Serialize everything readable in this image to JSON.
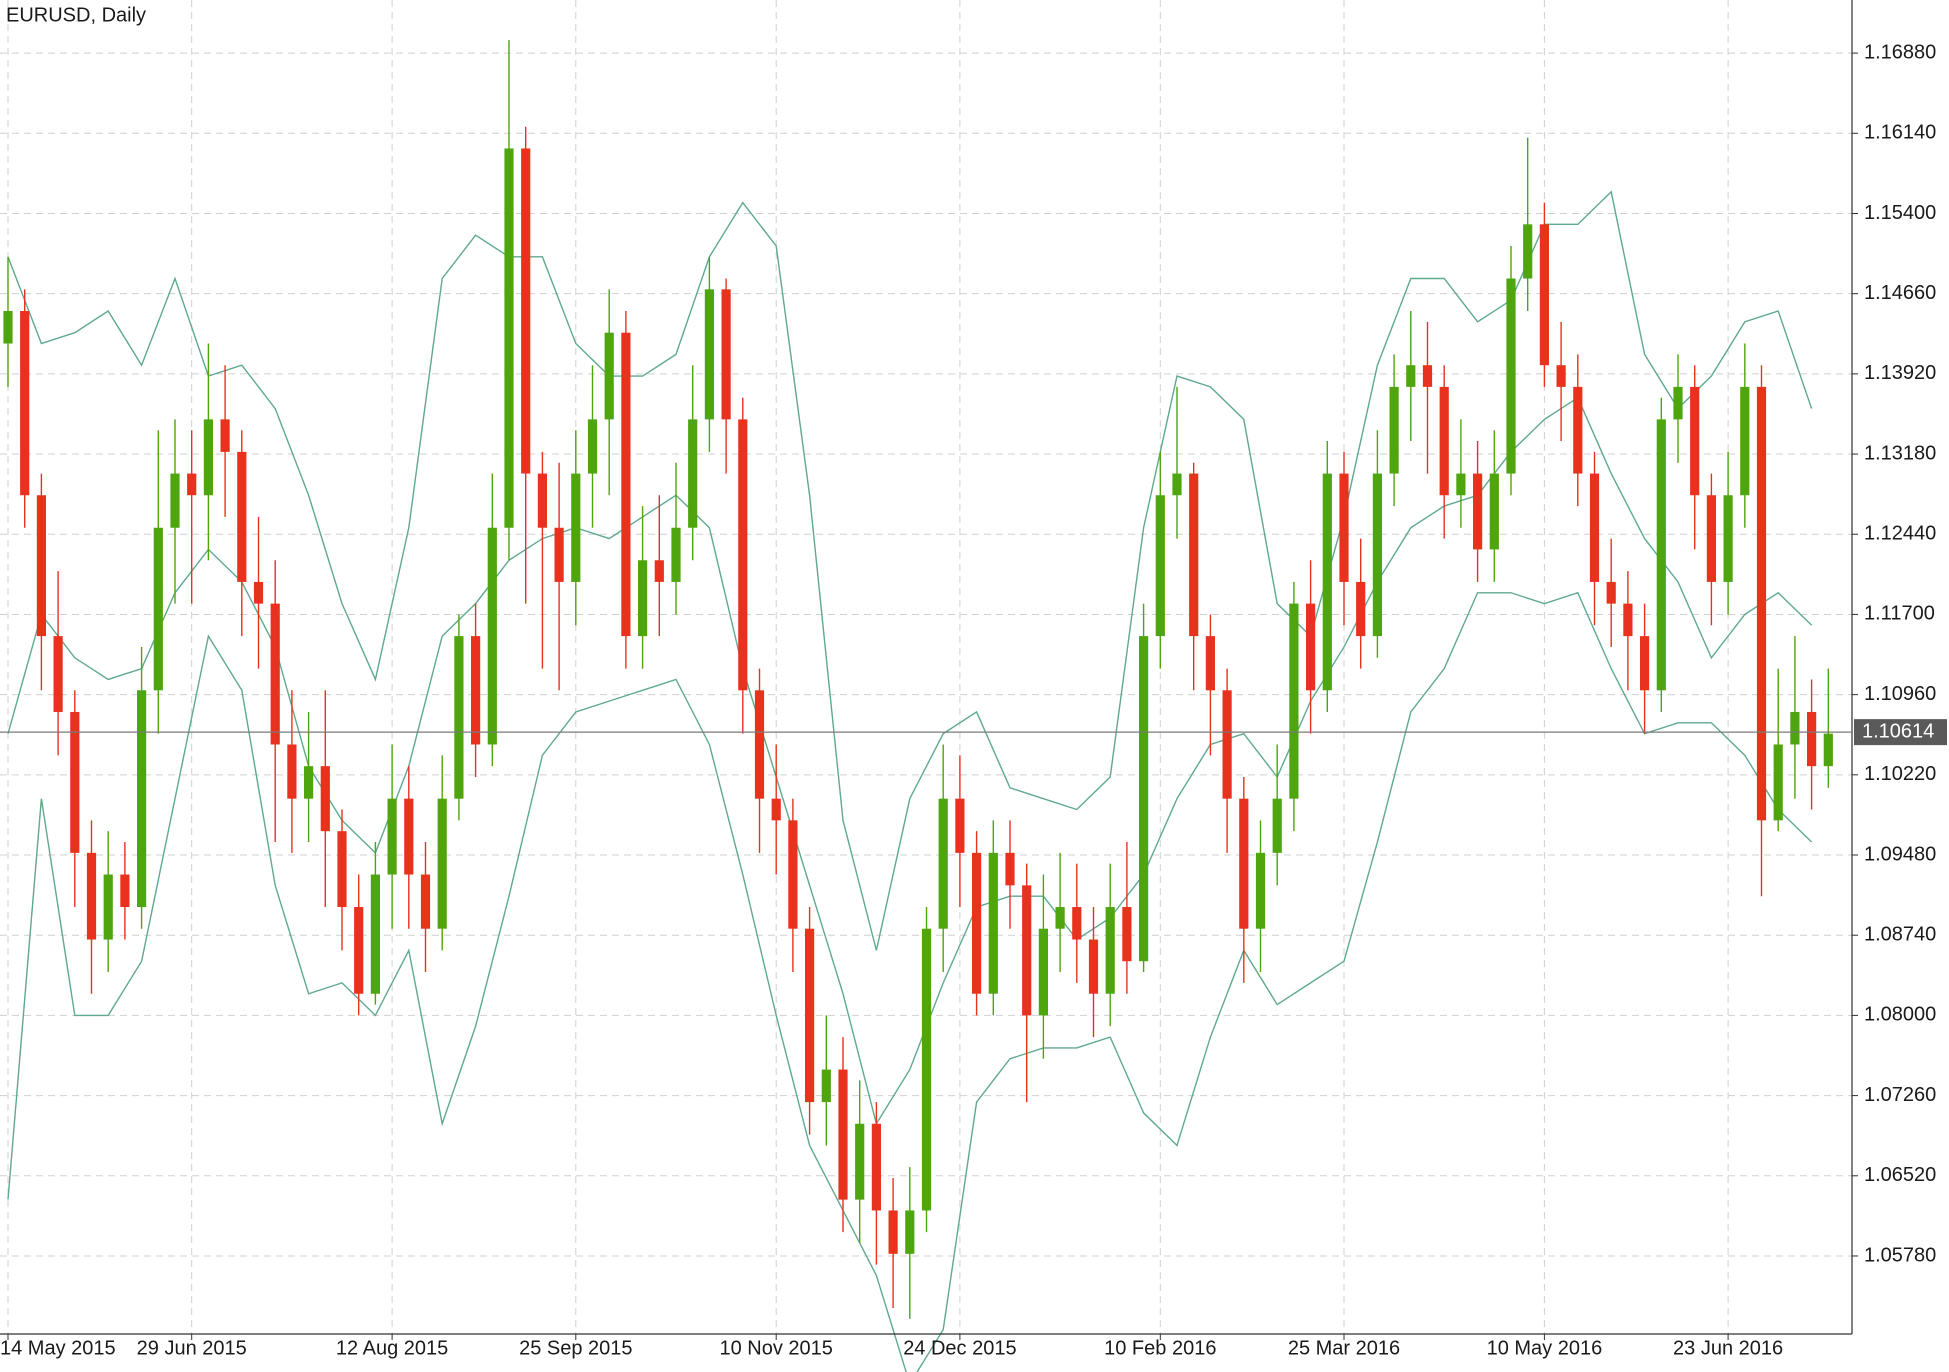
{
  "chart_data": {
    "type": "candlestick",
    "title": "EURUSD, Daily",
    "categories": [
      "14 May 2015",
      null,
      null,
      null,
      null,
      null,
      null,
      null,
      null,
      null,
      null,
      "29 Jun 2015",
      null,
      null,
      null,
      null,
      null,
      null,
      null,
      null,
      null,
      null,
      null,
      "12 Aug 2015",
      null,
      null,
      null,
      null,
      null,
      null,
      null,
      null,
      null,
      null,
      "25 Sep 2015",
      null,
      null,
      null,
      null,
      null,
      null,
      null,
      null,
      null,
      null,
      null,
      "10 Nov 2015",
      null,
      null,
      null,
      null,
      null,
      null,
      null,
      null,
      null,
      null,
      "24 Dec 2015",
      null,
      null,
      null,
      null,
      null,
      null,
      null,
      null,
      null,
      null,
      null,
      "10 Feb 2016",
      null,
      null,
      null,
      null,
      null,
      null,
      null,
      null,
      null,
      null,
      "25 Mar 2016",
      null,
      null,
      null,
      null,
      null,
      null,
      null,
      null,
      null,
      null,
      null,
      "10 May 2016",
      null,
      null,
      null,
      null,
      null,
      null,
      null,
      null,
      null,
      null,
      "23 Jun 2016",
      null,
      null,
      null,
      null,
      null,
      null
    ],
    "open": [
      1.142,
      1.145,
      1.128,
      1.115,
      1.108,
      1.095,
      1.087,
      1.093,
      1.09,
      1.11,
      1.125,
      1.13,
      1.128,
      1.135,
      1.132,
      1.12,
      1.118,
      1.105,
      1.1,
      1.103,
      1.097,
      1.09,
      1.082,
      1.093,
      1.1,
      1.093,
      1.088,
      1.1,
      1.115,
      1.105,
      1.125,
      1.16,
      1.13,
      1.125,
      1.12,
      1.13,
      1.135,
      1.143,
      1.115,
      1.122,
      1.12,
      1.125,
      1.135,
      1.147,
      1.135,
      1.11,
      1.1,
      1.098,
      1.088,
      1.072,
      1.075,
      1.063,
      1.07,
      1.062,
      1.058,
      1.062,
      1.088,
      1.1,
      1.095,
      1.082,
      1.095,
      1.092,
      1.08,
      1.088,
      1.09,
      1.087,
      1.082,
      1.09,
      1.085,
      1.115,
      1.128,
      1.13,
      1.115,
      1.11,
      1.1,
      1.088,
      1.095,
      1.1,
      1.118,
      1.11,
      1.13,
      1.12,
      1.115,
      1.13,
      1.138,
      1.14,
      1.138,
      1.128,
      1.13,
      1.123,
      1.13,
      1.148,
      1.153,
      1.14,
      1.138,
      1.13,
      1.12,
      1.118,
      1.115,
      1.11,
      1.135,
      1.138,
      1.128,
      1.12,
      1.128,
      1.138,
      1.098,
      1.105,
      1.108,
      1.103
    ],
    "high": [
      1.15,
      1.147,
      1.13,
      1.121,
      1.11,
      1.098,
      1.097,
      1.096,
      1.114,
      1.134,
      1.135,
      1.134,
      1.142,
      1.14,
      1.134,
      1.126,
      1.122,
      1.11,
      1.108,
      1.11,
      1.099,
      1.093,
      1.096,
      1.105,
      1.103,
      1.096,
      1.104,
      1.117,
      1.118,
      1.13,
      1.17,
      1.162,
      1.132,
      1.131,
      1.134,
      1.14,
      1.147,
      1.145,
      1.127,
      1.128,
      1.131,
      1.14,
      1.15,
      1.148,
      1.137,
      1.112,
      1.105,
      1.1,
      1.09,
      1.08,
      1.078,
      1.074,
      1.072,
      1.065,
      1.066,
      1.09,
      1.105,
      1.104,
      1.097,
      1.098,
      1.098,
      1.094,
      1.093,
      1.095,
      1.094,
      1.09,
      1.094,
      1.096,
      1.118,
      1.132,
      1.138,
      1.131,
      1.117,
      1.112,
      1.102,
      1.098,
      1.105,
      1.12,
      1.122,
      1.133,
      1.132,
      1.124,
      1.134,
      1.141,
      1.145,
      1.144,
      1.14,
      1.135,
      1.133,
      1.134,
      1.151,
      1.161,
      1.155,
      1.144,
      1.141,
      1.132,
      1.124,
      1.121,
      1.118,
      1.137,
      1.141,
      1.14,
      1.13,
      1.132,
      1.142,
      1.14,
      1.112,
      1.115,
      1.111,
      1.112
    ],
    "low": [
      1.138,
      1.125,
      1.11,
      1.104,
      1.09,
      1.082,
      1.084,
      1.087,
      1.088,
      1.106,
      1.118,
      1.118,
      1.122,
      1.126,
      1.115,
      1.112,
      1.096,
      1.095,
      1.096,
      1.09,
      1.086,
      1.08,
      1.081,
      1.088,
      1.088,
      1.084,
      1.086,
      1.098,
      1.102,
      1.103,
      1.122,
      1.118,
      1.112,
      1.11,
      1.116,
      1.125,
      1.128,
      1.112,
      1.112,
      1.115,
      1.117,
      1.122,
      1.132,
      1.13,
      1.106,
      1.095,
      1.093,
      1.084,
      1.069,
      1.068,
      1.06,
      1.059,
      1.057,
      1.053,
      1.052,
      1.06,
      1.084,
      1.09,
      1.08,
      1.08,
      1.088,
      1.072,
      1.076,
      1.084,
      1.083,
      1.078,
      1.079,
      1.082,
      1.084,
      1.112,
      1.124,
      1.11,
      1.104,
      1.095,
      1.083,
      1.084,
      1.092,
      1.097,
      1.106,
      1.108,
      1.116,
      1.112,
      1.113,
      1.127,
      1.133,
      1.13,
      1.124,
      1.125,
      1.12,
      1.12,
      1.128,
      1.145,
      1.138,
      1.133,
      1.127,
      1.116,
      1.114,
      1.11,
      1.106,
      1.108,
      1.131,
      1.123,
      1.116,
      1.117,
      1.125,
      1.091,
      1.097,
      1.1,
      1.099,
      1.101
    ],
    "close": [
      1.145,
      1.128,
      1.115,
      1.108,
      1.095,
      1.087,
      1.093,
      1.09,
      1.11,
      1.125,
      1.13,
      1.128,
      1.135,
      1.132,
      1.12,
      1.118,
      1.105,
      1.1,
      1.103,
      1.097,
      1.09,
      1.082,
      1.093,
      1.1,
      1.093,
      1.088,
      1.1,
      1.115,
      1.105,
      1.125,
      1.16,
      1.13,
      1.125,
      1.12,
      1.13,
      1.135,
      1.143,
      1.115,
      1.122,
      1.12,
      1.125,
      1.135,
      1.147,
      1.135,
      1.11,
      1.1,
      1.098,
      1.088,
      1.072,
      1.075,
      1.063,
      1.07,
      1.062,
      1.058,
      1.062,
      1.088,
      1.1,
      1.095,
      1.082,
      1.095,
      1.092,
      1.08,
      1.088,
      1.09,
      1.087,
      1.082,
      1.09,
      1.085,
      1.115,
      1.128,
      1.13,
      1.115,
      1.11,
      1.1,
      1.088,
      1.095,
      1.1,
      1.118,
      1.11,
      1.13,
      1.12,
      1.115,
      1.13,
      1.138,
      1.14,
      1.138,
      1.128,
      1.13,
      1.123,
      1.13,
      1.148,
      1.153,
      1.14,
      1.138,
      1.13,
      1.12,
      1.118,
      1.115,
      1.11,
      1.135,
      1.138,
      1.128,
      1.12,
      1.128,
      1.138,
      1.098,
      1.105,
      1.108,
      1.103,
      1.106
    ],
    "up_color": "#4ea50e",
    "down_color": "#e8321e",
    "bands": {
      "color": "#5fa98c",
      "x": [
        0,
        2,
        4,
        6,
        8,
        10,
        12,
        14,
        16,
        18,
        20,
        22,
        24,
        26,
        28,
        30,
        32,
        34,
        36,
        38,
        40,
        42,
        44,
        46,
        48,
        50,
        52,
        54,
        56,
        58,
        60,
        62,
        64,
        66,
        68,
        70,
        72,
        74,
        76,
        78,
        80,
        82,
        84,
        86,
        88,
        90,
        92,
        94,
        96,
        98,
        100,
        102,
        104,
        106,
        108
      ],
      "series": [
        {
          "values": [
            1.15,
            1.142,
            1.143,
            1.145,
            1.14,
            1.148,
            1.139,
            1.14,
            1.136,
            1.128,
            1.118,
            1.111,
            1.125,
            1.148,
            1.152,
            1.15,
            1.15,
            1.142,
            1.139,
            1.139,
            1.141,
            1.15,
            1.155,
            1.151,
            1.128,
            1.098,
            1.086,
            1.1,
            1.106,
            1.108,
            1.101,
            1.1,
            1.099,
            1.102,
            1.125,
            1.139,
            1.138,
            1.135,
            1.118,
            1.115,
            1.126,
            1.14,
            1.148,
            1.148,
            1.144,
            1.146,
            1.153,
            1.153,
            1.156,
            1.141,
            1.136,
            1.139,
            1.144,
            1.145,
            1.136
          ]
        },
        {
          "values": [
            1.106,
            1.117,
            1.113,
            1.111,
            1.112,
            1.119,
            1.123,
            1.12,
            1.114,
            1.103,
            1.098,
            1.095,
            1.103,
            1.115,
            1.118,
            1.122,
            1.124,
            1.125,
            1.124,
            1.126,
            1.128,
            1.125,
            1.112,
            1.102,
            1.092,
            1.082,
            1.07,
            1.075,
            1.083,
            1.09,
            1.091,
            1.091,
            1.087,
            1.089,
            1.093,
            1.1,
            1.105,
            1.106,
            1.102,
            1.109,
            1.114,
            1.12,
            1.125,
            1.127,
            1.128,
            1.132,
            1.135,
            1.137,
            1.13,
            1.124,
            1.12,
            1.113,
            1.117,
            1.119,
            1.116
          ]
        },
        {
          "values": [
            1.063,
            1.1,
            1.08,
            1.08,
            1.085,
            1.1,
            1.115,
            1.11,
            1.092,
            1.082,
            1.083,
            1.08,
            1.086,
            1.07,
            1.079,
            1.091,
            1.104,
            1.108,
            1.109,
            1.11,
            1.111,
            1.105,
            1.093,
            1.08,
            1.068,
            1.062,
            1.056,
            1.046,
            1.051,
            1.072,
            1.076,
            1.077,
            1.077,
            1.078,
            1.071,
            1.068,
            1.078,
            1.086,
            1.081,
            1.083,
            1.085,
            1.096,
            1.108,
            1.112,
            1.119,
            1.119,
            1.118,
            1.119,
            1.112,
            1.106,
            1.107,
            1.107,
            1.104,
            1.099,
            1.096
          ]
        }
      ]
    },
    "last_price": 1.10614,
    "ylim": [
      1.0506,
      1.1737
    ],
    "yticks": [
      {
        "value": 1.0578,
        "label": "1.05780"
      },
      {
        "value": 1.0652,
        "label": "1.06520"
      },
      {
        "value": 1.0726,
        "label": "1.07260"
      },
      {
        "value": 1.08,
        "label": "1.08000"
      },
      {
        "value": 1.0874,
        "label": "1.08740"
      },
      {
        "value": 1.0948,
        "label": "1.09480"
      },
      {
        "value": 1.1022,
        "label": "1.10220"
      },
      {
        "value": 1.1096,
        "label": "1.10960"
      },
      {
        "value": 1.117,
        "label": "1.11700"
      },
      {
        "value": 1.1244,
        "label": "1.12440"
      },
      {
        "value": 1.1318,
        "label": "1.13180"
      },
      {
        "value": 1.1392,
        "label": "1.13920"
      },
      {
        "value": 1.1466,
        "label": "1.14660"
      },
      {
        "value": 1.154,
        "label": "1.15400"
      },
      {
        "value": 1.1614,
        "label": "1.16140"
      },
      {
        "value": 1.1688,
        "label": "1.16880"
      }
    ],
    "grid": true
  }
}
